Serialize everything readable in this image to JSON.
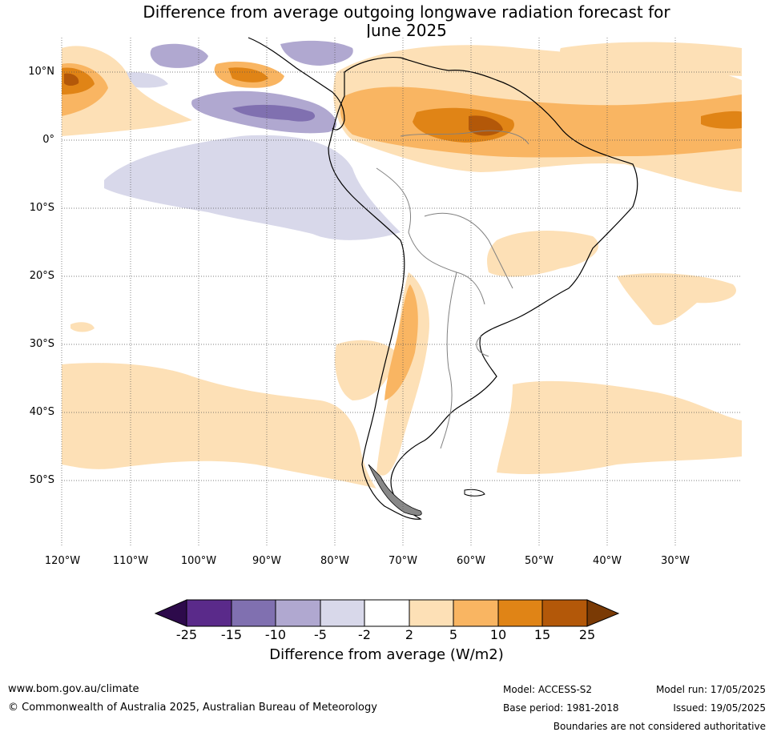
{
  "title_line1": "Difference from average outgoing longwave radiation forecast for",
  "title_line2": "June 2025",
  "lat_labels": [
    "10°N",
    "0°",
    "10°S",
    "20°S",
    "30°S",
    "40°S",
    "50°S"
  ],
  "lon_labels": [
    "120°W",
    "110°W",
    "100°W",
    "90°W",
    "80°W",
    "70°W",
    "60°W",
    "50°W",
    "40°W",
    "30°W"
  ],
  "colorbar": {
    "ticks": [
      "-25",
      "-15",
      "-10",
      "-5",
      "-2",
      "2",
      "5",
      "10",
      "15",
      "25"
    ],
    "colors": [
      "#2d0a4b",
      "#5a2a8a",
      "#8070b0",
      "#b0a8d0",
      "#d8d8ea",
      "#ffffff",
      "#fde0b6",
      "#f9b562",
      "#e08416",
      "#b35809",
      "#7a3a05"
    ],
    "title": "Difference from average (W/m2)"
  },
  "footer": {
    "website": "www.bom.gov.au/climate",
    "copyright": "© Commonwealth of Australia 2025, Australian Bureau of Meteorology",
    "model": "Model: ACCESS-S2",
    "base_period": "Base period: 1981-2018",
    "model_run": "Model run: 17/05/2025",
    "issued": "Issued: 19/05/2025",
    "disclaimer": "Boundaries are not considered authoritative"
  }
}
